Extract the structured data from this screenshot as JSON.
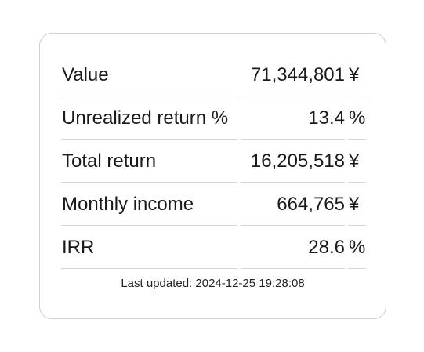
{
  "table": {
    "rows": [
      [
        "Value",
        "71,344,801",
        "¥"
      ],
      [
        "Unrealized return %",
        "13.4",
        "%"
      ],
      [
        "Total return",
        "16,205,518",
        "¥"
      ],
      [
        "Monthly income",
        "664,765",
        "¥"
      ],
      [
        "IRR",
        "28.6",
        "%"
      ]
    ]
  },
  "footer": {
    "text": "Last updated: 2024-12-25 19:28:08"
  }
}
